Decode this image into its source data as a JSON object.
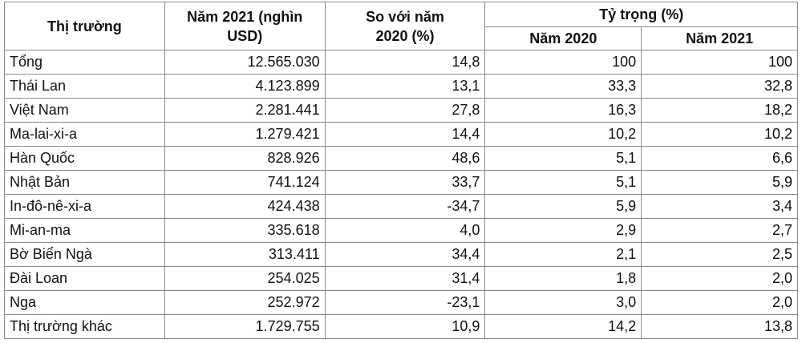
{
  "table": {
    "header": {
      "market": "Thị trường",
      "value2021": "Năm 2021 (nghìn USD)",
      "change": "So với năm 2020 (%)",
      "share": "Tỷ trọng (%)",
      "share2020": "Năm 2020",
      "share2021": "Năm 2021"
    },
    "rows": [
      [
        "Tổng",
        "12.565.030",
        "14,8",
        "100",
        "100"
      ],
      [
        "Thái Lan",
        "4.123.899",
        "13,1",
        "33,3",
        "32,8"
      ],
      [
        "Việt Nam",
        "2.281.441",
        "27,8",
        "16,3",
        "18,2"
      ],
      [
        "Ma-lai-xi-a",
        "1.279.421",
        "14,4",
        "10,2",
        "10,2"
      ],
      [
        "Hàn Quốc",
        "828.926",
        "48,6",
        "5,1",
        "6,6"
      ],
      [
        "Nhật Bản",
        "741.124",
        "33,7",
        "5,1",
        "5,9"
      ],
      [
        "In-đô-nê-xi-a",
        "424.438",
        "-34,7",
        "5,9",
        "3,4"
      ],
      [
        "Mi-an-ma",
        "335.618",
        "4,0",
        "2,9",
        "2,7"
      ],
      [
        "Bờ Biển Ngà",
        "313.411",
        "34,4",
        "2,1",
        "2,5"
      ],
      [
        "Đài Loan",
        "254.025",
        "31,4",
        "1,8",
        "2,0"
      ],
      [
        "Nga",
        "252.972",
        "-23,1",
        "3,0",
        "2,0"
      ],
      [
        "Thị trường khác",
        "1.729.755",
        "10,9",
        "14,2",
        "13,8"
      ]
    ]
  }
}
